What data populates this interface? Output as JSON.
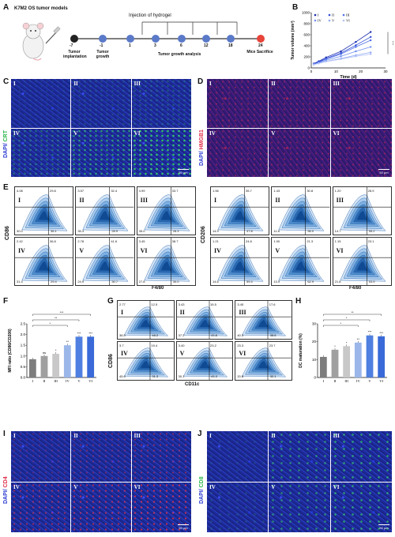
{
  "panels": {
    "A": {
      "letter": "A",
      "title": "K7M2 OS tumor models",
      "injection_label": "Injection of hydrogel",
      "timeline": [
        {
          "day": "-7",
          "label": "Tumor implantation"
        },
        {
          "day": "-1",
          "label": "Tumor growth"
        },
        {
          "day": "1",
          "label": ""
        },
        {
          "day": "3",
          "label": ""
        },
        {
          "day": "6",
          "label": ""
        },
        {
          "day": "12",
          "label": ""
        },
        {
          "day": "18",
          "label": ""
        },
        {
          "day": "24",
          "label": "Mice Sacrifice"
        }
      ],
      "analysis_label": "Tumor growth analysis",
      "colors": {
        "implant": "#222222",
        "sacrifice": "#e8443a",
        "point": "#5a79c8"
      }
    },
    "B": {
      "letter": "B",
      "sig": "***"
    },
    "C": {
      "letter": "C",
      "label_dapi": "DAPI/",
      "label_marker": "CRT",
      "scale": "50 μm",
      "groups": [
        "I",
        "II",
        "III",
        "IV",
        "V",
        "VI"
      ]
    },
    "D": {
      "letter": "D",
      "label_dapi": "DAPI/",
      "label_marker": "HMGB1",
      "scale": "50 μm",
      "groups": [
        "I",
        "II",
        "III",
        "IV",
        "V",
        "VI"
      ]
    },
    "E": {
      "letter": "E",
      "left": {
        "ylabel": "CD86",
        "xlabel": "F4/80",
        "plots": [
          {
            "g": "I",
            "q": [
              "4.08",
              "29.8",
              "30.0",
              "36.1"
            ]
          },
          {
            "g": "II",
            "q": [
              "3.57",
              "32.4",
              "35.3",
              "28.9"
            ]
          },
          {
            "g": "III",
            "q": [
              "4.99",
              "33.7",
              "35.0",
              "26.3"
            ]
          },
          {
            "g": "IV",
            "q": [
              "2.42",
              "36.8",
              "31.4",
              "29.4"
            ]
          },
          {
            "g": "V",
            "q": [
              "2.78",
              "41.6",
              "24.9",
              "30.7"
            ]
          },
          {
            "g": "VI",
            "q": [
              "3.45",
              "38.7",
              "27.8",
              "30.0"
            ]
          }
        ]
      },
      "right": {
        "ylabel": "CD206",
        "xlabel": "F4/80",
        "plots": [
          {
            "g": "I",
            "q": [
              "1.56",
              "35.7",
              "14.9",
              "47.8"
            ]
          },
          {
            "g": "II",
            "q": [
              "1.43",
              "30.8",
              "11.8",
              "56.0"
            ]
          },
          {
            "g": "III",
            "q": [
              "1.20",
              "28.9",
              "14.7",
              "55.2"
            ]
          },
          {
            "g": "IV",
            "q": [
              "1.21",
              "24.8",
              "14.6",
              "59.4"
            ]
          },
          {
            "g": "V",
            "q": [
              "1.90",
              "21.3",
              "13.9",
              "62.9"
            ]
          },
          {
            "g": "VI",
            "q": [
              "1.15",
              "23.1",
              "21.8",
              "53.9"
            ]
          }
        ]
      }
    },
    "F": {
      "letter": "F",
      "stars": [
        "",
        "ns",
        "*",
        "**",
        "***",
        "***"
      ],
      "brackets": [
        "***",
        "**",
        "*"
      ]
    },
    "G": {
      "letter": "G",
      "ylabel": "CD86",
      "xlabel": "CD11c",
      "plots": [
        {
          "g": "I",
          "q": [
            "2.77",
            "12.5",
            "36.5",
            "48.2"
          ]
        },
        {
          "g": "II",
          "q": [
            "3.43",
            "15.5",
            "37.2",
            "43.8"
          ]
        },
        {
          "g": "III",
          "q": [
            "3.45",
            "17.6",
            "40.3",
            "38.6"
          ]
        },
        {
          "g": "IV",
          "q": [
            "3.7",
            "19.4",
            "45.6",
            "31.3"
          ]
        },
        {
          "g": "V",
          "q": [
            "3.40",
            "23.2",
            "30.1",
            "43.3"
          ]
        },
        {
          "g": "VI",
          "q": [
            "23.3",
            "23.7",
            "20.8",
            "32.1"
          ]
        }
      ]
    },
    "H": {
      "letter": "H",
      "stars": [
        "",
        "*",
        "*",
        "**",
        "***",
        "***"
      ],
      "brackets": [
        "**",
        "*",
        "*"
      ]
    },
    "I": {
      "letter": "I",
      "label_dapi": "DAPI/",
      "label_marker": "CD4",
      "scale": "50 μm",
      "groups": [
        "I",
        "II",
        "III",
        "IV",
        "V",
        "VI"
      ]
    },
    "J": {
      "letter": "J",
      "label_dapi": "DAPI/",
      "label_marker": "CD8",
      "scale": "50 μm",
      "groups": [
        "I",
        "II",
        "III",
        "IV",
        "V",
        "VI"
      ]
    }
  },
  "chart_data": [
    {
      "type": "line",
      "panel": "B",
      "title": "",
      "xlabel": "Time (d)",
      "ylabel": "Tumor volume (mm³)",
      "xlim": [
        0,
        30
      ],
      "ylim": [
        0,
        1000
      ],
      "xticks": [
        "0",
        "10",
        "20",
        "30"
      ],
      "yticks": [
        "0",
        "200",
        "400",
        "600",
        "800",
        "1000"
      ],
      "x": [
        1,
        3,
        6,
        12,
        18,
        24
      ],
      "legend": [
        "I",
        "II",
        "III",
        "IV",
        "V",
        "VI"
      ],
      "series": [
        {
          "name": "I",
          "values": [
            80,
            120,
            190,
            300,
            470,
            650
          ]
        },
        {
          "name": "II",
          "values": [
            75,
            110,
            170,
            270,
            410,
            560
          ]
        },
        {
          "name": "III",
          "values": [
            70,
            100,
            160,
            250,
            380,
            500
          ]
        },
        {
          "name": "IV",
          "values": [
            65,
            95,
            140,
            210,
            300,
            380
          ]
        },
        {
          "name": "V",
          "values": [
            60,
            85,
            120,
            170,
            230,
            280
          ]
        },
        {
          "name": "VI",
          "values": [
            60,
            80,
            115,
            160,
            210,
            250
          ]
        }
      ],
      "colors": [
        "#1d2fae",
        "#2f4cd6",
        "#4f6fe6",
        "#6f8ef0",
        "#90a9f2",
        "#b2c2f7"
      ]
    },
    {
      "type": "bar",
      "panel": "F",
      "xlabel": "",
      "ylabel": "MFI ratio (CD86/CD206)",
      "categories": [
        "I",
        "II",
        "III",
        "IV",
        "V",
        "VI"
      ],
      "values": [
        0.85,
        1.0,
        1.1,
        1.5,
        1.9,
        1.9
      ],
      "ylim": [
        0,
        2.5
      ],
      "yticks": [
        "0.0",
        "0.5",
        "1.0",
        "1.5",
        "2.0",
        "2.5"
      ],
      "colors": [
        "#7d7d7d",
        "#a0a0a0",
        "#c8c8c8",
        "#9bb7ea",
        "#4f7fe0",
        "#3a6ad8"
      ]
    },
    {
      "type": "bar",
      "panel": "H",
      "xlabel": "",
      "ylabel": "DC maturation (%)",
      "categories": [
        "I",
        "II",
        "III",
        "IV",
        "V",
        "VI"
      ],
      "values": [
        11.5,
        15.5,
        17.5,
        19.5,
        23.5,
        23.0
      ],
      "ylim": [
        0,
        30
      ],
      "yticks": [
        "0",
        "10",
        "20",
        "30"
      ],
      "colors": [
        "#7d7d7d",
        "#a0a0a0",
        "#c8c8c8",
        "#9bb7ea",
        "#4f7fe0",
        "#3a6ad8"
      ]
    }
  ]
}
